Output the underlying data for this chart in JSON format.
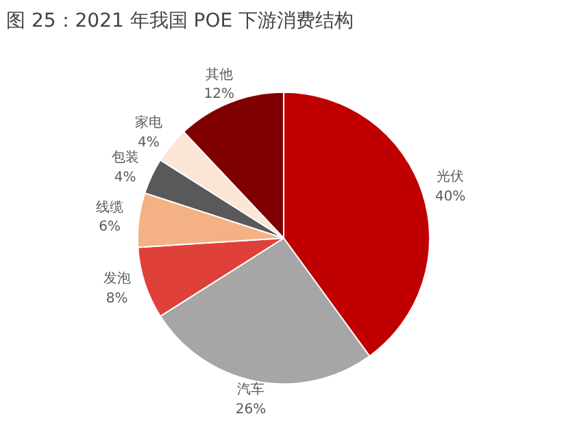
{
  "chart_data": {
    "type": "pie",
    "title": "图 25：2021 年我国 POE 下游消费结构",
    "categories": [
      "光伏",
      "汽车",
      "发泡",
      "线缆",
      "包装",
      "家电",
      "其他"
    ],
    "values": [
      40,
      26,
      8,
      6,
      4,
      4,
      12
    ],
    "value_labels": [
      "40%",
      "26%",
      "8%",
      "6%",
      "4%",
      "4%",
      "12%"
    ],
    "colors": [
      "#c00000",
      "#a6a6a6",
      "#e0403a",
      "#f4b183",
      "#595959",
      "#fbe5d6",
      "#7f0000"
    ]
  }
}
